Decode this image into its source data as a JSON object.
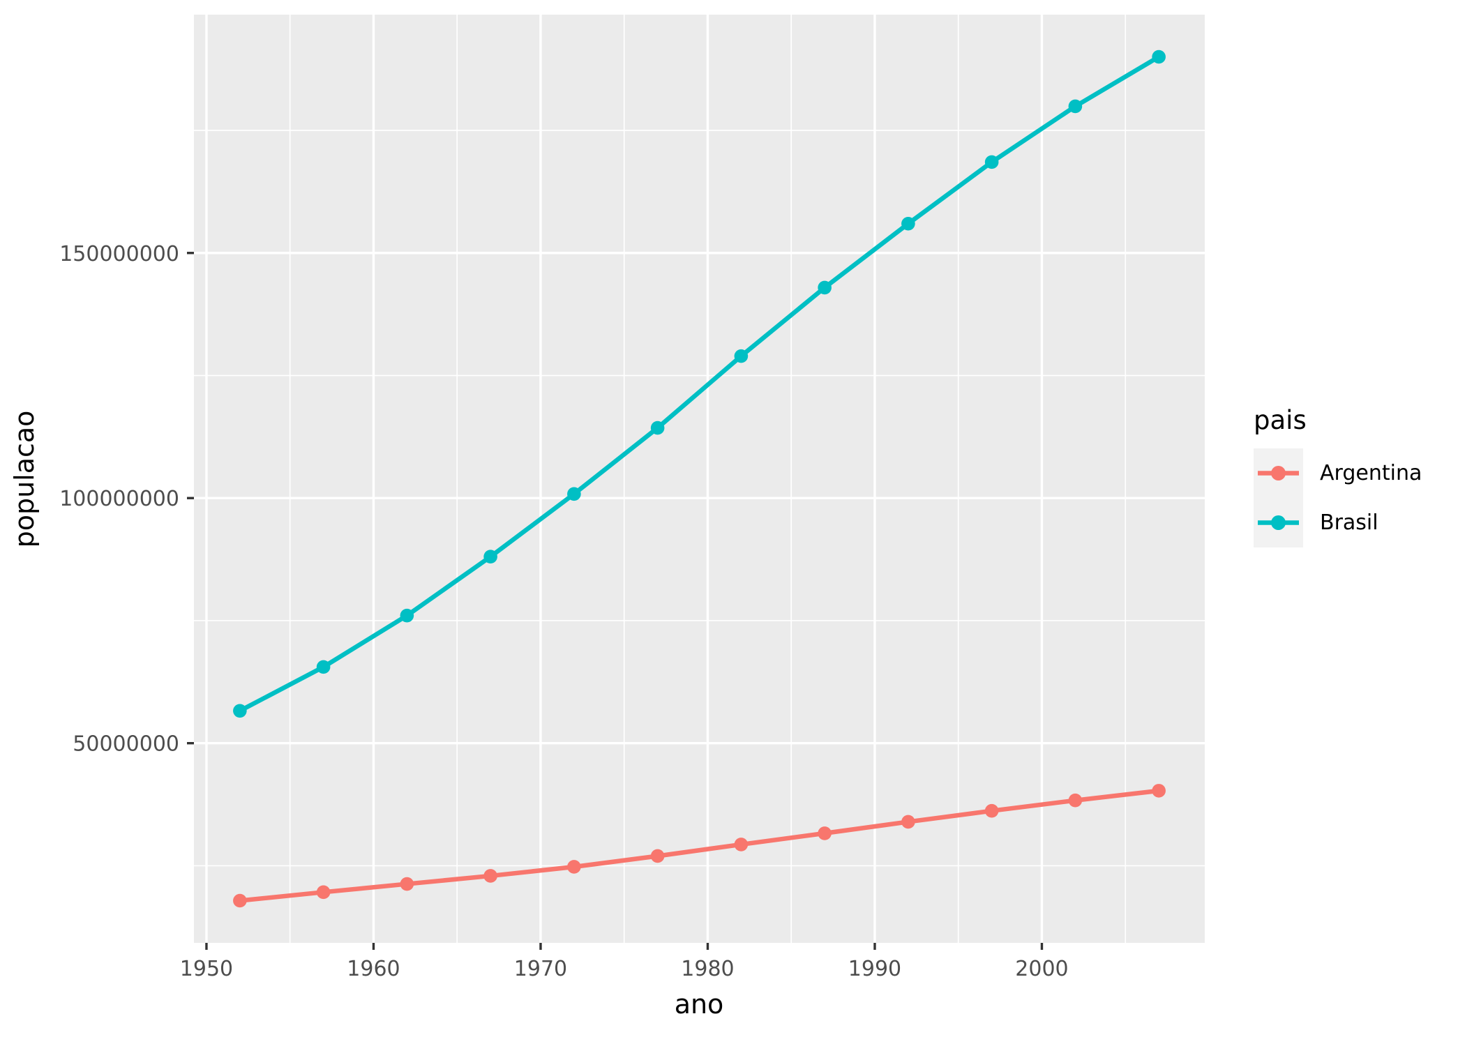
{
  "chart_data": {
    "type": "line",
    "title": "",
    "xlabel": "ano",
    "ylabel": "populacao",
    "legend_title": "pais",
    "legend_position": "right",
    "grid": true,
    "panel_bg": "#EBEBEB",
    "grid_color": "#FFFFFF",
    "tick_color": "#333333",
    "tick_label_color": "#4D4D4D",
    "legend_key_bg": "#F2F2F2",
    "x": [
      1952,
      1957,
      1962,
      1967,
      1972,
      1977,
      1982,
      1987,
      1992,
      1997,
      2002,
      2007
    ],
    "series": [
      {
        "name": "Argentina",
        "color": "#F8766D",
        "values": [
          17876956,
          19610538,
          21283783,
          22934225,
          24779799,
          26983828,
          29341374,
          31620918,
          33958947,
          36203463,
          38331121,
          40301927
        ]
      },
      {
        "name": "Brasil",
        "color": "#00BFC4",
        "values": [
          56602560,
          65551171,
          76039390,
          88049823,
          100840058,
          114313951,
          128962939,
          142938076,
          155975974,
          168546719,
          179914212,
          190010647
        ]
      }
    ],
    "xlim": [
      1949.25,
      2009.75
    ],
    "ylim": [
      9270271,
      198617332
    ],
    "x_ticks": [
      1950,
      1960,
      1970,
      1980,
      1990,
      2000
    ],
    "x_minor_ticks": [
      1955,
      1965,
      1975,
      1985,
      1995,
      2005
    ],
    "y_ticks": [
      50000000,
      100000000,
      150000000
    ],
    "y_minor_ticks": [
      25000000,
      75000000,
      125000000,
      175000000
    ]
  },
  "legend": {
    "title": "pais",
    "items": [
      {
        "label": "Argentina"
      },
      {
        "label": "Brasil"
      }
    ]
  }
}
